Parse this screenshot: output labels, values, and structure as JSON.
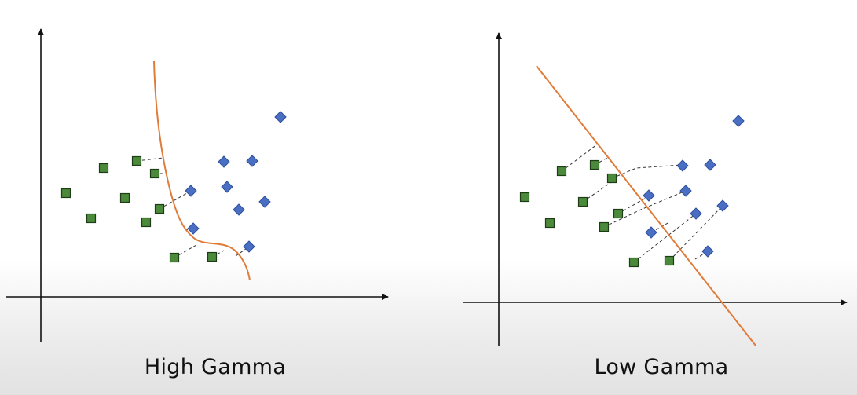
{
  "captions": {
    "left": "High Gamma",
    "right": "Low Gamma"
  },
  "colors": {
    "green_fill": "#4a8a3a",
    "green_stroke": "#1e3d17",
    "blue_fill": "#4a6fc2",
    "blue_stroke": "#2e4f9e",
    "boundary": "#e07b39",
    "axis": "#111111",
    "dash": "#333333"
  }
}
